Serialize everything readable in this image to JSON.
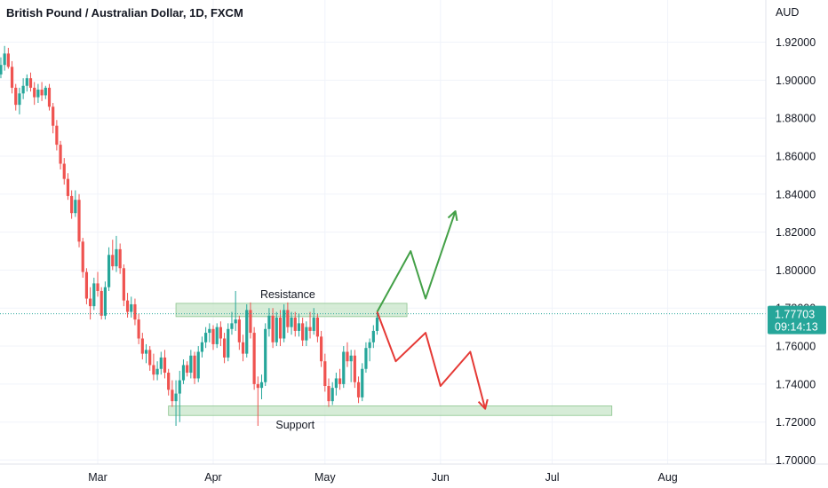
{
  "chart_data": {
    "type": "candlestick",
    "title": "British Pound / Australian Dollar, 1D, FXCM",
    "currency_label": "AUD",
    "y_ticks": [
      "1.92000",
      "1.90000",
      "1.88000",
      "1.86000",
      "1.84000",
      "1.82000",
      "1.80000",
      "1.78000",
      "1.76000",
      "1.74000",
      "1.72000",
      "1.70000"
    ],
    "ylim": [
      1.696,
      1.935
    ],
    "x_labels": [
      {
        "label": "Mar",
        "day": 40
      },
      {
        "label": "Apr",
        "day": 71
      },
      {
        "label": "May",
        "day": 101
      },
      {
        "label": "Jun",
        "day": 132
      },
      {
        "label": "Jul",
        "day": 162
      },
      {
        "label": "Aug",
        "day": 193
      }
    ],
    "xlim": [
      13,
      226
    ],
    "grid": true,
    "current_price": {
      "value": "1.77703",
      "countdown": "09:14:13",
      "price": 1.77703,
      "color": "#26a69a"
    },
    "candles": [
      [
        13,
        1.905,
        1.908,
        1.899,
        1.903
      ],
      [
        14,
        1.903,
        1.912,
        1.901,
        1.908
      ],
      [
        15,
        1.908,
        1.918,
        1.905,
        1.914
      ],
      [
        16,
        1.914,
        1.917,
        1.906,
        1.907
      ],
      [
        17,
        1.907,
        1.91,
        1.893,
        1.896
      ],
      [
        18,
        1.896,
        1.898,
        1.884,
        1.887
      ],
      [
        19,
        1.887,
        1.896,
        1.882,
        1.893
      ],
      [
        20,
        1.893,
        1.901,
        1.89,
        1.897
      ],
      [
        21,
        1.897,
        1.903,
        1.894,
        1.901
      ],
      [
        22,
        1.901,
        1.904,
        1.894,
        1.896
      ],
      [
        23,
        1.896,
        1.899,
        1.887,
        1.891
      ],
      [
        24,
        1.891,
        1.898,
        1.888,
        1.895
      ],
      [
        25,
        1.895,
        1.899,
        1.889,
        1.892
      ],
      [
        26,
        1.892,
        1.897,
        1.89,
        1.896
      ],
      [
        27,
        1.896,
        1.898,
        1.884,
        1.886
      ],
      [
        28,
        1.886,
        1.888,
        1.872,
        1.876
      ],
      [
        29,
        1.876,
        1.879,
        1.863,
        1.866
      ],
      [
        30,
        1.866,
        1.868,
        1.853,
        1.856
      ],
      [
        31,
        1.856,
        1.859,
        1.845,
        1.848
      ],
      [
        32,
        1.848,
        1.851,
        1.837,
        1.839
      ],
      [
        33,
        1.839,
        1.842,
        1.827,
        1.83
      ],
      [
        34,
        1.83,
        1.842,
        1.828,
        1.837
      ],
      [
        35,
        1.837,
        1.84,
        1.812,
        1.815
      ],
      [
        36,
        1.815,
        1.817,
        1.796,
        1.799
      ],
      [
        37,
        1.799,
        1.801,
        1.782,
        1.785
      ],
      [
        38,
        1.785,
        1.791,
        1.774,
        1.781
      ],
      [
        39,
        1.781,
        1.796,
        1.779,
        1.793
      ],
      [
        40,
        1.793,
        1.799,
        1.786,
        1.789
      ],
      [
        41,
        1.789,
        1.791,
        1.774,
        1.776
      ],
      [
        42,
        1.776,
        1.794,
        1.774,
        1.791
      ],
      [
        43,
        1.791,
        1.812,
        1.789,
        1.808
      ],
      [
        44,
        1.808,
        1.816,
        1.8,
        1.802
      ],
      [
        45,
        1.802,
        1.818,
        1.799,
        1.811
      ],
      [
        46,
        1.811,
        1.814,
        1.798,
        1.801
      ],
      [
        47,
        1.801,
        1.803,
        1.781,
        1.784
      ],
      [
        48,
        1.784,
        1.788,
        1.775,
        1.778
      ],
      [
        49,
        1.778,
        1.786,
        1.775,
        1.782
      ],
      [
        50,
        1.782,
        1.785,
        1.771,
        1.774
      ],
      [
        51,
        1.774,
        1.777,
        1.761,
        1.764
      ],
      [
        52,
        1.764,
        1.767,
        1.753,
        1.756
      ],
      [
        53,
        1.756,
        1.761,
        1.751,
        1.758
      ],
      [
        54,
        1.758,
        1.76,
        1.747,
        1.75
      ],
      [
        55,
        1.75,
        1.756,
        1.742,
        1.745
      ],
      [
        56,
        1.745,
        1.752,
        1.742,
        1.748
      ],
      [
        57,
        1.748,
        1.757,
        1.745,
        1.754
      ],
      [
        58,
        1.754,
        1.758,
        1.743,
        1.746
      ],
      [
        59,
        1.746,
        1.748,
        1.734,
        1.737
      ],
      [
        60,
        1.737,
        1.742,
        1.728,
        1.731
      ],
      [
        61,
        1.731,
        1.742,
        1.718,
        1.735
      ],
      [
        62,
        1.735,
        1.747,
        1.72,
        1.742
      ],
      [
        63,
        1.742,
        1.753,
        1.74,
        1.75
      ],
      [
        64,
        1.75,
        1.752,
        1.744,
        1.746
      ],
      [
        65,
        1.746,
        1.758,
        1.743,
        1.755
      ],
      [
        66,
        1.755,
        1.757,
        1.74,
        1.743
      ],
      [
        67,
        1.743,
        1.76,
        1.741,
        1.757
      ],
      [
        68,
        1.757,
        1.765,
        1.754,
        1.762
      ],
      [
        69,
        1.762,
        1.77,
        1.759,
        1.767
      ],
      [
        70,
        1.767,
        1.772,
        1.762,
        1.769
      ],
      [
        71,
        1.769,
        1.771,
        1.758,
        1.761
      ],
      [
        72,
        1.761,
        1.772,
        1.759,
        1.77
      ],
      [
        73,
        1.77,
        1.773,
        1.76,
        1.764
      ],
      [
        74,
        1.764,
        1.767,
        1.751,
        1.754
      ],
      [
        75,
        1.754,
        1.772,
        1.752,
        1.769
      ],
      [
        76,
        1.769,
        1.778,
        1.766,
        1.772
      ],
      [
        77,
        1.772,
        1.789,
        1.768,
        1.774
      ],
      [
        78,
        1.774,
        1.776,
        1.758,
        1.762
      ],
      [
        79,
        1.762,
        1.766,
        1.752,
        1.756
      ],
      [
        80,
        1.756,
        1.782,
        1.754,
        1.779
      ],
      [
        81,
        1.779,
        1.783,
        1.764,
        1.767
      ],
      [
        82,
        1.767,
        1.77,
        1.737,
        1.74
      ],
      [
        83,
        1.74,
        1.744,
        1.718,
        1.738
      ],
      [
        84,
        1.738,
        1.745,
        1.732,
        1.741
      ],
      [
        85,
        1.741,
        1.772,
        1.739,
        1.769
      ],
      [
        86,
        1.769,
        1.78,
        1.765,
        1.776
      ],
      [
        87,
        1.776,
        1.78,
        1.759,
        1.762
      ],
      [
        88,
        1.762,
        1.778,
        1.76,
        1.775
      ],
      [
        89,
        1.775,
        1.779,
        1.76,
        1.764
      ],
      [
        90,
        1.764,
        1.782,
        1.762,
        1.779
      ],
      [
        91,
        1.779,
        1.783,
        1.767,
        1.77
      ],
      [
        92,
        1.77,
        1.778,
        1.766,
        1.775
      ],
      [
        93,
        1.775,
        1.778,
        1.765,
        1.768
      ],
      [
        94,
        1.768,
        1.777,
        1.765,
        1.772
      ],
      [
        95,
        1.772,
        1.775,
        1.76,
        1.763
      ],
      [
        96,
        1.763,
        1.773,
        1.76,
        1.77
      ],
      [
        97,
        1.77,
        1.778,
        1.764,
        1.768
      ],
      [
        98,
        1.768,
        1.78,
        1.766,
        1.775
      ],
      [
        99,
        1.775,
        1.777,
        1.762,
        1.765
      ],
      [
        100,
        1.765,
        1.768,
        1.749,
        1.752
      ],
      [
        101,
        1.752,
        1.756,
        1.736,
        1.739
      ],
      [
        102,
        1.739,
        1.743,
        1.728,
        1.731
      ],
      [
        103,
        1.731,
        1.741,
        1.729,
        1.738
      ],
      [
        104,
        1.738,
        1.746,
        1.734,
        1.743
      ],
      [
        105,
        1.743,
        1.748,
        1.737,
        1.74
      ],
      [
        106,
        1.74,
        1.76,
        1.738,
        1.757
      ],
      [
        107,
        1.757,
        1.762,
        1.749,
        1.752
      ],
      [
        108,
        1.752,
        1.758,
        1.741,
        1.755
      ],
      [
        109,
        1.755,
        1.758,
        1.738,
        1.741
      ],
      [
        110,
        1.741,
        1.744,
        1.73,
        1.733
      ],
      [
        111,
        1.733,
        1.751,
        1.731,
        1.748
      ],
      [
        112,
        1.748,
        1.762,
        1.746,
        1.759
      ],
      [
        113,
        1.759,
        1.764,
        1.752,
        1.762
      ],
      [
        114,
        1.762,
        1.771,
        1.759,
        1.768
      ],
      [
        115,
        1.768,
        1.778,
        1.766,
        1.775
      ]
    ],
    "resistance_zone": {
      "label": "Resistance",
      "low": 1.7755,
      "high": 1.7825,
      "day_start": 61,
      "day_end": 123
    },
    "support_zone": {
      "label": "Support",
      "low": 1.7235,
      "high": 1.7285,
      "day_start": 59,
      "day_end": 178
    },
    "bullish_path": [
      [
        115,
        1.778
      ],
      [
        124,
        1.81
      ],
      [
        128,
        1.785
      ],
      [
        136,
        1.831
      ]
    ],
    "bearish_path": [
      [
        115,
        1.778
      ],
      [
        120,
        1.752
      ],
      [
        128,
        1.767
      ],
      [
        132,
        1.739
      ],
      [
        140,
        1.757
      ],
      [
        144,
        1.727
      ]
    ],
    "colors": {
      "up": "#26a69a",
      "down": "#ef5350",
      "bull_arrow": "#43a047",
      "bear_arrow": "#e53935",
      "zone_fill": "#c8e6c9",
      "zone_stroke": "#8bc48d"
    }
  }
}
